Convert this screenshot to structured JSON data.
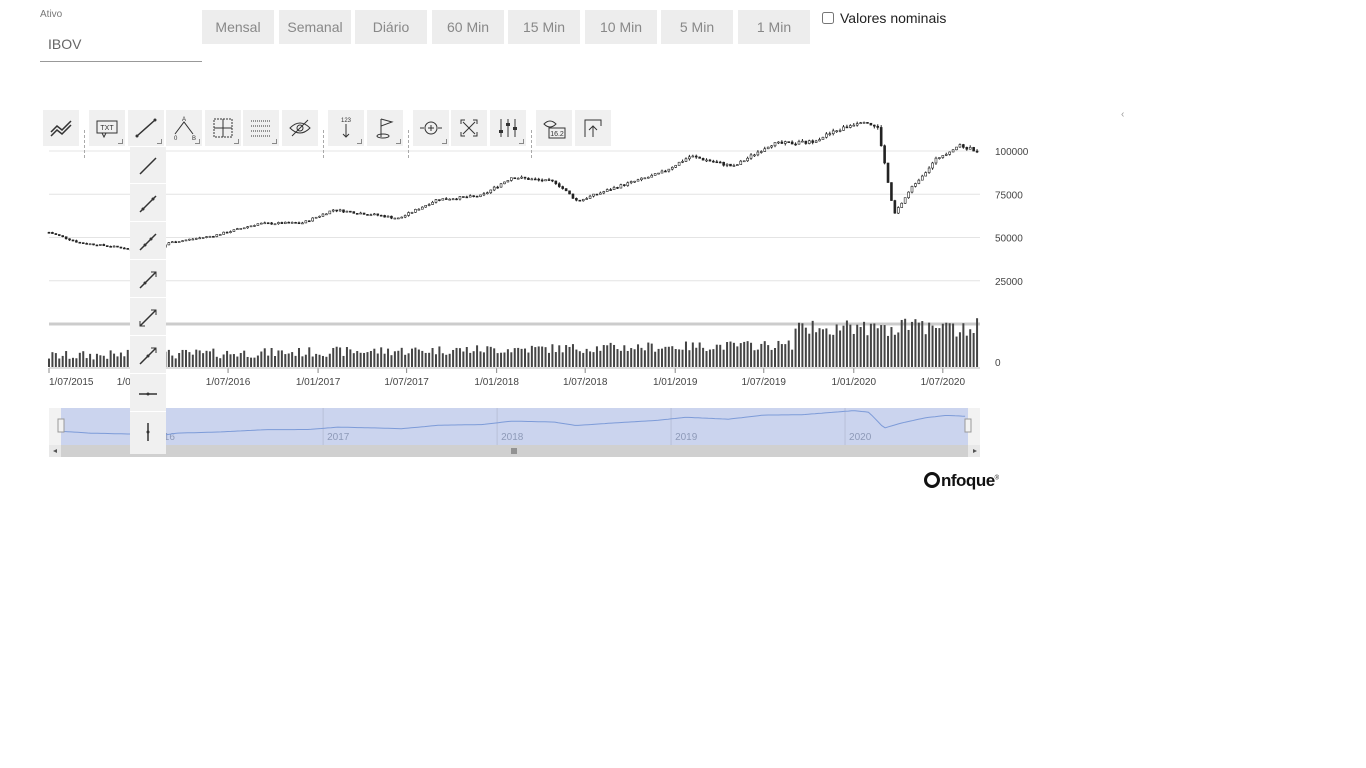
{
  "asset": {
    "label": "Ativo",
    "value": "IBOV"
  },
  "periods": [
    "Mensal",
    "Semanal",
    "Diário",
    "60 Min",
    "15 Min",
    "10 Min",
    "5 Min",
    "1 Min"
  ],
  "nominal_label": "Valores nominais",
  "nominal_checked": false,
  "toolbar": {
    "icons": [
      "indicators-icon",
      "text-annotation-icon",
      "line-tool-icon",
      "fibonacci-icon",
      "measure-icon",
      "grid-icon",
      "hide-icon",
      "count-icon",
      "flag-icon",
      "zoom-icon",
      "fullscreen-icon",
      "settings-icon",
      "label-value-icon",
      "save-icon"
    ],
    "popup_icons": [
      "segment-icon",
      "ray-icon",
      "arrow-line-icon",
      "extended-line-icon",
      "info-line-icon",
      "parallel-line-icon",
      "horizontal-line-icon",
      "vertical-line-icon"
    ],
    "collapse_icon": "‹"
  },
  "logo": {
    "text": "nfoque"
  },
  "chart_data": {
    "type": "candlestick",
    "instrument": "IBOV",
    "x_range": [
      "2015-07-01",
      "2020-09-15"
    ],
    "ylim": [
      0,
      125000
    ],
    "y_ticks": [
      "0",
      "25000",
      "50000",
      "75000",
      "100000"
    ],
    "y_tick_values": [
      0,
      25000,
      50000,
      75000,
      100000
    ],
    "x_tick_labels": [
      "1/07/2015",
      "1/01/2016",
      "1/07/2016",
      "1/01/2017",
      "1/07/2017",
      "1/01/2018",
      "1/07/2018",
      "1/01/2019",
      "1/07/2019",
      "1/01/2020",
      "1/07/2020"
    ],
    "x_tick_dates": [
      "2015-07-01",
      "2016-01-01",
      "2016-07-01",
      "2017-01-01",
      "2017-07-01",
      "2018-01-01",
      "2018-07-01",
      "2019-01-01",
      "2019-07-01",
      "2020-01-01",
      "2020-07-01"
    ],
    "close_series": [
      [
        "2015-07-01",
        53000
      ],
      [
        "2015-09-01",
        47000
      ],
      [
        "2015-12-01",
        44000
      ],
      [
        "2016-01-20",
        38500
      ],
      [
        "2016-03-01",
        47000
      ],
      [
        "2016-06-01",
        51000
      ],
      [
        "2016-09-01",
        58000
      ],
      [
        "2016-12-01",
        58500
      ],
      [
        "2017-02-01",
        66000
      ],
      [
        "2017-05-01",
        63000
      ],
      [
        "2017-06-15",
        61000
      ],
      [
        "2017-09-01",
        72000
      ],
      [
        "2017-12-01",
        74000
      ],
      [
        "2018-02-01",
        85000
      ],
      [
        "2018-05-01",
        82000
      ],
      [
        "2018-06-15",
        71000
      ],
      [
        "2018-09-01",
        79000
      ],
      [
        "2018-12-01",
        87000
      ],
      [
        "2019-02-01",
        97000
      ],
      [
        "2019-05-01",
        91000
      ],
      [
        "2019-07-15",
        104000
      ],
      [
        "2019-10-01",
        105000
      ],
      [
        "2020-01-20",
        118000
      ],
      [
        "2020-02-20",
        113000
      ],
      [
        "2020-03-23",
        63000
      ],
      [
        "2020-05-01",
        80000
      ],
      [
        "2020-06-20",
        96000
      ],
      [
        "2020-08-01",
        103000
      ],
      [
        "2020-09-15",
        100000
      ]
    ],
    "volume_scale": [
      0,
      60000
    ],
    "navigator_years": [
      "2016",
      "2017",
      "2018",
      "2019",
      "2020"
    ],
    "navigator_year_dates": [
      "2016-01-01",
      "2017-01-01",
      "2018-01-01",
      "2019-01-01",
      "2020-01-01"
    ],
    "grid": true
  }
}
